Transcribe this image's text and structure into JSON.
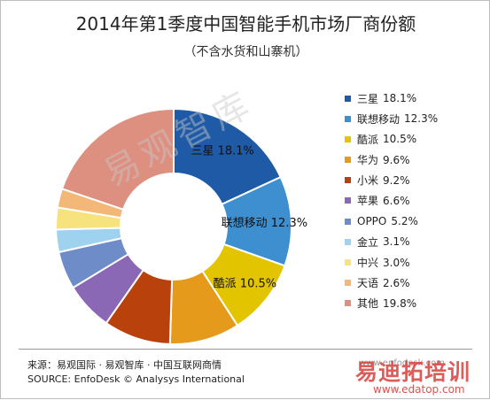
{
  "chart_data": {
    "type": "pie",
    "title": "2014年第1季度中国智能手机市场厂商份额",
    "subtitle": "（不含水货和山寨机）",
    "legend_position": "right",
    "slices": [
      {
        "label": "三星",
        "value": 18.1,
        "value_text": "18.1%",
        "color": "#1f5aa6",
        "label_on_chart": true
      },
      {
        "label": "联想移动",
        "value": 12.3,
        "value_text": "12.3%",
        "color": "#3d8fd0",
        "label_on_chart": true
      },
      {
        "label": "酷派",
        "value": 10.5,
        "value_text": "10.5%",
        "color": "#e2c500",
        "label_on_chart": true
      },
      {
        "label": "华为",
        "value": 9.6,
        "value_text": "9.6%",
        "color": "#e59a1c",
        "label_on_chart": false
      },
      {
        "label": "小米",
        "value": 9.2,
        "value_text": "9.2%",
        "color": "#b9410c",
        "label_on_chart": false
      },
      {
        "label": "苹果",
        "value": 6.6,
        "value_text": "6.6%",
        "color": "#8b68b6",
        "label_on_chart": false
      },
      {
        "label": "OPPO",
        "value": 5.2,
        "value_text": "5.2%",
        "color": "#6e8cc8",
        "label_on_chart": false
      },
      {
        "label": "金立",
        "value": 3.1,
        "value_text": "3.1%",
        "color": "#9fd2ee",
        "label_on_chart": false
      },
      {
        "label": "中兴",
        "value": 3.0,
        "value_text": "3.0%",
        "color": "#f6e37e",
        "label_on_chart": false
      },
      {
        "label": "天语",
        "value": 2.6,
        "value_text": "2.6%",
        "color": "#f3b878",
        "label_on_chart": false
      },
      {
        "label": "其他",
        "value": 19.8,
        "value_text": "19.8%",
        "color": "#dd8f80",
        "label_on_chart": false
      }
    ]
  },
  "source": {
    "line1": "来源：易观国际 · 易观智库 · 中国互联网商情",
    "line2": "SOURCE: EnfoDesk © Analysys International"
  },
  "watermarks": {
    "diagonal": "易观智库",
    "site": "www.enfodesk.com",
    "brand": "易迪拓培训",
    "url": "www.edatop.com"
  }
}
